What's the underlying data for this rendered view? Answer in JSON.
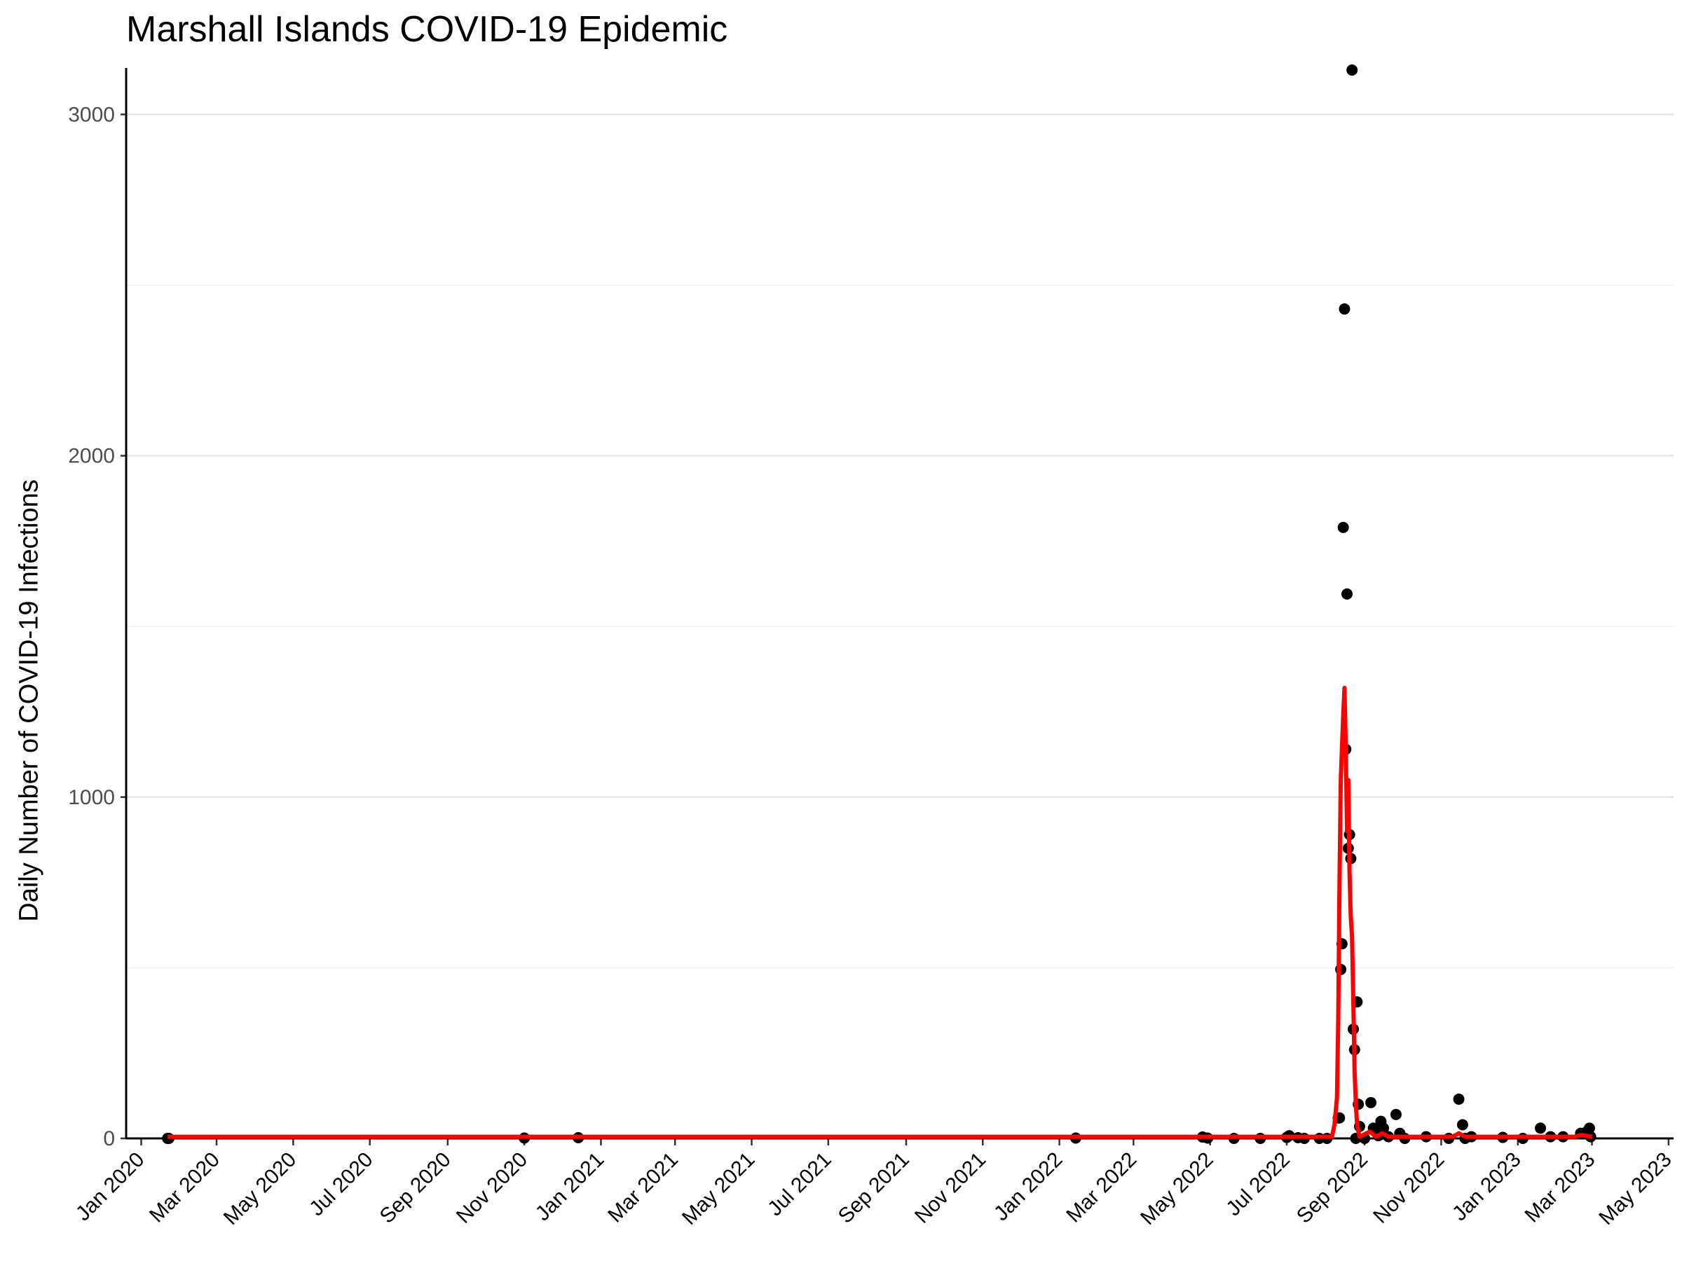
{
  "chart_data": {
    "type": "scatter",
    "title": "Marshall Islands COVID-19 Epidemic",
    "xlabel": "",
    "ylabel": "Daily Number of COVID-19 Infections",
    "xlim": [
      "2020-01-01",
      "2023-05-01"
    ],
    "ylim": [
      0,
      3130
    ],
    "grid": "horizontal",
    "y_ticks": [
      0,
      1000,
      2000,
      3000
    ],
    "x_ticks": [
      {
        "date": "2020-01-01",
        "label": "Jan 2020"
      },
      {
        "date": "2020-03-01",
        "label": "Mar 2020"
      },
      {
        "date": "2020-05-01",
        "label": "May 2020"
      },
      {
        "date": "2020-07-01",
        "label": "Jul 2020"
      },
      {
        "date": "2020-09-01",
        "label": "Sep 2020"
      },
      {
        "date": "2020-11-01",
        "label": "Nov 2020"
      },
      {
        "date": "2021-01-01",
        "label": "Jan 2021"
      },
      {
        "date": "2021-03-01",
        "label": "Mar 2021"
      },
      {
        "date": "2021-05-01",
        "label": "May 2021"
      },
      {
        "date": "2021-07-01",
        "label": "Jul 2021"
      },
      {
        "date": "2021-09-01",
        "label": "Sep 2021"
      },
      {
        "date": "2021-11-01",
        "label": "Nov 2021"
      },
      {
        "date": "2022-01-01",
        "label": "Jan 2022"
      },
      {
        "date": "2022-03-01",
        "label": "Mar 2022"
      },
      {
        "date": "2022-05-01",
        "label": "May 2022"
      },
      {
        "date": "2022-07-01",
        "label": "Jul 2022"
      },
      {
        "date": "2022-09-01",
        "label": "Sep 2022"
      },
      {
        "date": "2022-11-01",
        "label": "Nov 2022"
      },
      {
        "date": "2023-01-01",
        "label": "Jan 2023"
      },
      {
        "date": "2023-03-01",
        "label": "Mar 2023"
      },
      {
        "date": "2023-05-01",
        "label": "May 2023"
      }
    ],
    "series": [
      {
        "type": "scatter",
        "color": "#000000",
        "points": [
          [
            "2020-01-22",
            0
          ],
          [
            "2020-01-23",
            0
          ],
          [
            "2020-11-01",
            1
          ],
          [
            "2020-12-14",
            2
          ],
          [
            "2022-01-14",
            1
          ],
          [
            "2022-04-25",
            4
          ],
          [
            "2022-04-29",
            1
          ],
          [
            "2022-05-20",
            0
          ],
          [
            "2022-06-10",
            0
          ],
          [
            "2022-07-01",
            3
          ],
          [
            "2022-07-03",
            8
          ],
          [
            "2022-07-10",
            2
          ],
          [
            "2022-07-15",
            0
          ],
          [
            "2022-07-27",
            0
          ],
          [
            "2022-08-02",
            0
          ],
          [
            "2022-08-11",
            60
          ],
          [
            "2022-08-12",
            60
          ],
          [
            "2022-08-13",
            495
          ],
          [
            "2022-08-14",
            570
          ],
          [
            "2022-08-15",
            1790
          ],
          [
            "2022-08-16",
            2430
          ],
          [
            "2022-08-17",
            1140
          ],
          [
            "2022-08-18",
            1595
          ],
          [
            "2022-08-19",
            850
          ],
          [
            "2022-08-20",
            890
          ],
          [
            "2022-08-21",
            820
          ],
          [
            "2022-08-22",
            3130
          ],
          [
            "2022-08-23",
            320
          ],
          [
            "2022-08-24",
            260
          ],
          [
            "2022-08-25",
            0
          ],
          [
            "2022-08-26",
            400
          ],
          [
            "2022-08-27",
            100
          ],
          [
            "2022-08-28",
            35
          ],
          [
            "2022-09-01",
            0
          ],
          [
            "2022-09-06",
            105
          ],
          [
            "2022-09-08",
            30
          ],
          [
            "2022-09-12",
            8
          ],
          [
            "2022-09-14",
            50
          ],
          [
            "2022-09-16",
            30
          ],
          [
            "2022-09-20",
            5
          ],
          [
            "2022-09-26",
            70
          ],
          [
            "2022-09-29",
            15
          ],
          [
            "2022-10-03",
            0
          ],
          [
            "2022-10-20",
            5
          ],
          [
            "2022-11-07",
            0
          ],
          [
            "2022-11-15",
            115
          ],
          [
            "2022-11-18",
            40
          ],
          [
            "2022-11-20",
            0
          ],
          [
            "2022-11-25",
            5
          ],
          [
            "2022-12-20",
            3
          ],
          [
            "2023-01-05",
            0
          ],
          [
            "2023-01-19",
            30
          ],
          [
            "2023-01-27",
            5
          ],
          [
            "2023-02-06",
            5
          ],
          [
            "2023-02-20",
            15
          ],
          [
            "2023-02-25",
            20
          ],
          [
            "2023-02-27",
            30
          ],
          [
            "2023-02-28",
            5
          ]
        ]
      },
      {
        "type": "line",
        "color": "#ff0000",
        "points": [
          [
            "2020-01-22",
            5
          ],
          [
            "2022-08-06",
            5
          ],
          [
            "2022-08-08",
            40
          ],
          [
            "2022-08-10",
            120
          ],
          [
            "2022-08-11",
            350
          ],
          [
            "2022-08-12",
            750
          ],
          [
            "2022-08-13",
            1050
          ],
          [
            "2022-08-14",
            1150
          ],
          [
            "2022-08-15",
            1240
          ],
          [
            "2022-08-16",
            1320
          ],
          [
            "2022-08-17",
            1150
          ],
          [
            "2022-08-18",
            900
          ],
          [
            "2022-08-19",
            1050
          ],
          [
            "2022-08-20",
            780
          ],
          [
            "2022-08-21",
            650
          ],
          [
            "2022-08-22",
            590
          ],
          [
            "2022-08-23",
            400
          ],
          [
            "2022-08-24",
            200
          ],
          [
            "2022-08-25",
            100
          ],
          [
            "2022-08-26",
            40
          ],
          [
            "2022-08-28",
            5
          ],
          [
            "2022-09-05",
            20
          ],
          [
            "2022-09-10",
            5
          ],
          [
            "2022-09-15",
            15
          ],
          [
            "2022-09-20",
            5
          ],
          [
            "2022-11-10",
            5
          ],
          [
            "2022-11-15",
            15
          ],
          [
            "2022-11-20",
            5
          ],
          [
            "2023-02-15",
            5
          ],
          [
            "2023-02-20",
            10
          ],
          [
            "2023-03-01",
            5
          ]
        ]
      }
    ]
  }
}
